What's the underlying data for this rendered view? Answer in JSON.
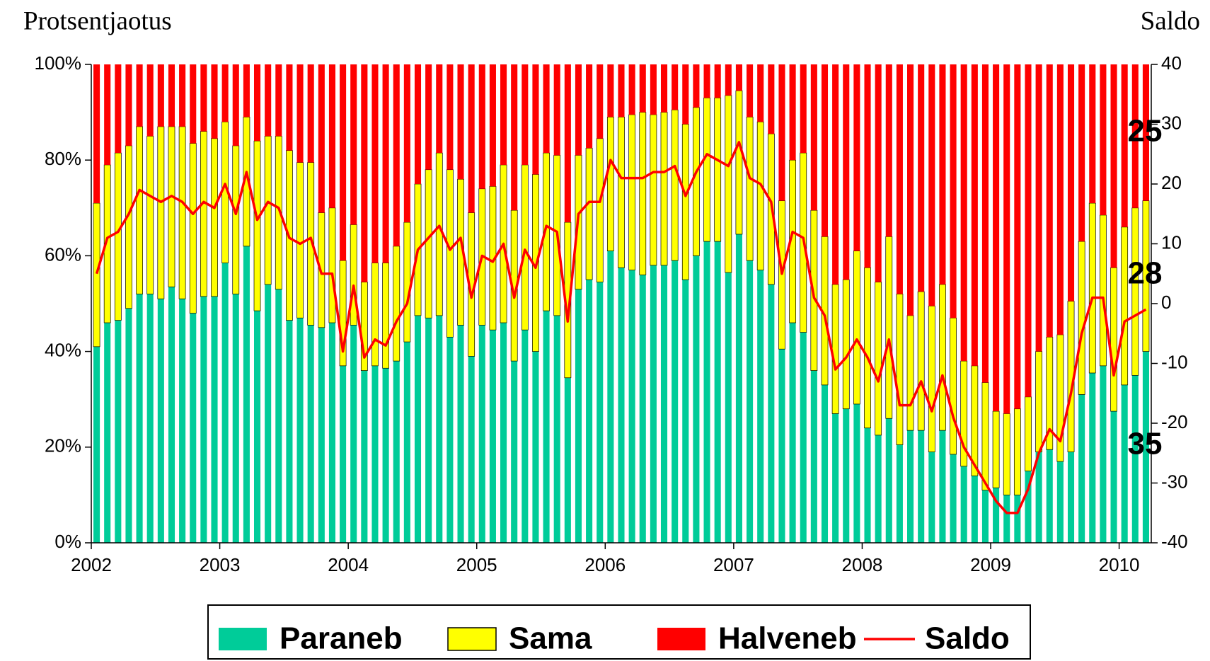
{
  "chart_data": {
    "type": "bar",
    "stacked": true,
    "y_label": "Protsentjaotus",
    "y2_label": "Saldo",
    "annotations": [
      "25",
      "28",
      "35"
    ],
    "categories": [
      "2002",
      null,
      null,
      null,
      null,
      null,
      null,
      null,
      null,
      null,
      null,
      null,
      "2003",
      null,
      null,
      null,
      null,
      null,
      null,
      null,
      null,
      null,
      null,
      null,
      "2004",
      null,
      null,
      null,
      null,
      null,
      null,
      null,
      null,
      null,
      null,
      null,
      "2005",
      null,
      null,
      null,
      null,
      null,
      null,
      null,
      null,
      null,
      null,
      null,
      "2006",
      null,
      null,
      null,
      null,
      null,
      null,
      null,
      null,
      null,
      null,
      null,
      "2007",
      null,
      null,
      null,
      null,
      null,
      null,
      null,
      null,
      null,
      null,
      null,
      "2008",
      null,
      null,
      null,
      null,
      null,
      null,
      null,
      null,
      null,
      null,
      null,
      "2009",
      null,
      null,
      null,
      null,
      null,
      null,
      null,
      null,
      null,
      null,
      null,
      "2010",
      null,
      null
    ],
    "series": [
      {
        "name": "Paraneb",
        "color": "#00cc99",
        "values": [
          41,
          46,
          46.5,
          49,
          52,
          52,
          51,
          53.5,
          51,
          48,
          51.5,
          51.5,
          58.5,
          52,
          62,
          48.5,
          54,
          53,
          46.5,
          47,
          45.5,
          45,
          46,
          37,
          45.5,
          36,
          37,
          36.5,
          38,
          42,
          47.5,
          47,
          47.5,
          43,
          45.5,
          39,
          45.5,
          44.5,
          46,
          38,
          44.5,
          40,
          48.5,
          47.5,
          34.5,
          53,
          55,
          54.5,
          61,
          57.5,
          57,
          56,
          58,
          58,
          59,
          55,
          60,
          63,
          63,
          56.5,
          64.5,
          59,
          57,
          54,
          40.5,
          46,
          44,
          36,
          33,
          27,
          28,
          29,
          24,
          22.5,
          26,
          20.5,
          23.5,
          23.5,
          19,
          23.5,
          18.5,
          16,
          14,
          11,
          11.5,
          10,
          10,
          15,
          19,
          19.5,
          17,
          19,
          31,
          35.5,
          37,
          27.5,
          33,
          35,
          40
        ]
      },
      {
        "name": "Sama",
        "color": "#ffff00",
        "values": [
          30,
          33,
          35,
          34,
          35,
          33,
          36,
          33.5,
          36,
          35.5,
          34.5,
          33,
          29.5,
          31,
          27,
          35.5,
          31,
          32,
          35.5,
          32.5,
          34,
          24,
          24,
          22,
          21,
          18.5,
          21.5,
          22,
          24,
          25,
          27.5,
          31,
          34,
          35,
          30.5,
          30,
          28.5,
          30,
          33,
          31.5,
          34.5,
          37,
          33,
          33.5,
          32.5,
          28,
          27.5,
          30,
          28,
          31.5,
          32.5,
          34,
          31.5,
          32,
          31.5,
          32.5,
          31,
          30,
          30,
          37,
          30,
          30,
          31,
          31.5,
          31,
          34,
          37.5,
          33.5,
          31,
          27,
          27,
          32,
          33.5,
          32,
          38,
          31.5,
          24,
          29,
          30.5,
          30.5,
          28.5,
          22,
          23,
          22.5,
          16,
          17,
          18,
          15.5,
          21,
          23.5,
          26.5,
          31.5,
          32,
          35.5,
          31.5,
          30,
          33,
          35,
          31.5
        ]
      },
      {
        "name": "Halveneb",
        "color": "#ff0000",
        "values": [
          29,
          21,
          18.5,
          17,
          13,
          15,
          13,
          13,
          13,
          16.5,
          14,
          15.5,
          12,
          17,
          11,
          16,
          15,
          15,
          18,
          20.5,
          20.5,
          31,
          30,
          41,
          33.5,
          45.5,
          41.5,
          41.5,
          38,
          33,
          25,
          22,
          18.5,
          22,
          24,
          31,
          26,
          25.5,
          21,
          30.5,
          21,
          23,
          18.5,
          19,
          33,
          19,
          17.5,
          15.5,
          11,
          11,
          10.5,
          10,
          10.5,
          10,
          9.5,
          12.5,
          9,
          7,
          7,
          6.5,
          5.5,
          11,
          12,
          14.5,
          28.5,
          20,
          18.5,
          30.5,
          36,
          46,
          45,
          39,
          42.5,
          45.5,
          36,
          48,
          52.5,
          47.5,
          50.5,
          46,
          53,
          62,
          63,
          66.5,
          72.5,
          73,
          72,
          69.5,
          60,
          57,
          56.5,
          49.5,
          37,
          29,
          31.5,
          42.5,
          34,
          30,
          28.5
        ]
      },
      {
        "name": "Saldo",
        "color": "#ff0000",
        "type": "line",
        "axis": "y2",
        "values": [
          5,
          11,
          12,
          15,
          19,
          18,
          17,
          18,
          17,
          15,
          17,
          16,
          20,
          15,
          22,
          14,
          17,
          16,
          11,
          10,
          11,
          5,
          5,
          -8,
          3,
          -9,
          -6,
          -7,
          -3,
          0,
          9,
          11,
          13,
          9,
          11,
          1,
          8,
          7,
          10,
          1,
          9,
          6,
          13,
          12,
          -3,
          15,
          17,
          17,
          24,
          21,
          21,
          21,
          22,
          22,
          23,
          18,
          22,
          25,
          24,
          23,
          27,
          21,
          20,
          17,
          5,
          12,
          11,
          1,
          -2,
          -11,
          -9,
          -6,
          -9,
          -13,
          -6,
          -17,
          -17,
          -13,
          -18,
          -12,
          -19,
          -24,
          -27,
          -30,
          -33,
          -35,
          -35,
          -31,
          -25,
          -21,
          -23,
          -15,
          -5,
          1,
          1,
          -12,
          -3,
          -2,
          -1
        ]
      }
    ],
    "ylim": [
      0,
      100
    ],
    "yticks": [
      {
        "value": 0,
        "label": "0%"
      },
      {
        "value": 20,
        "label": "20%"
      },
      {
        "value": 40,
        "label": "40%"
      },
      {
        "value": 60,
        "label": "60%"
      },
      {
        "value": 80,
        "label": "80%"
      },
      {
        "value": 100,
        "label": "100%"
      }
    ],
    "y2lim": [
      -40,
      40
    ],
    "y2ticks": [
      -40,
      -30,
      -20,
      -10,
      0,
      10,
      20,
      30,
      40
    ],
    "grid": false,
    "legend": "bottom"
  }
}
